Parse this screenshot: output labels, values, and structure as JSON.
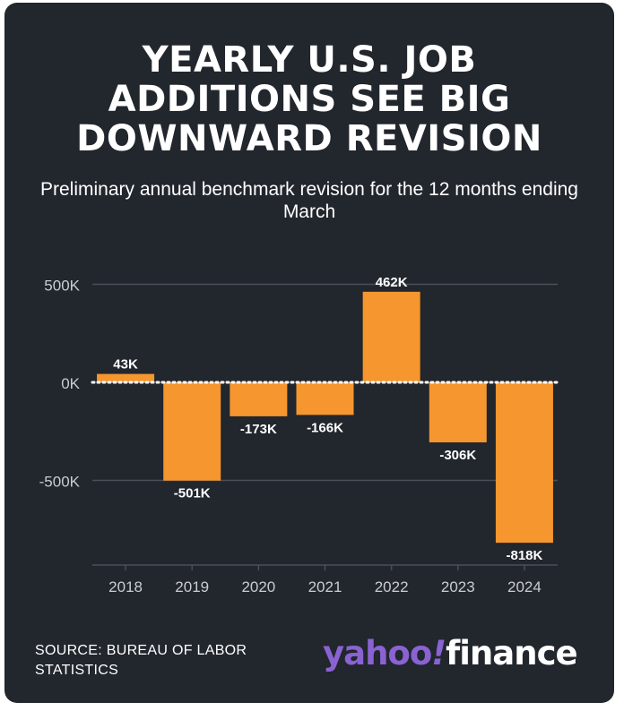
{
  "title_lines": [
    "YEARLY U.S. JOB",
    "ADDITIONS SEE BIG",
    "DOWNWARD REVISION"
  ],
  "subtitle": "Preliminary annual benchmark revision for the 12 months ending March",
  "source": "SOURCE: BUREAU OF LABOR STATISTICS",
  "logo": {
    "yahoo": "yahoo",
    "excl": "!",
    "finance": "finance"
  },
  "colors": {
    "background": "#22262d",
    "bar": "#f6962e",
    "grid": "#4a4f58",
    "text": "#ffffff",
    "axis_text": "#c9ccd1",
    "logo_purple": "#8a63d2"
  },
  "chart_data": {
    "type": "bar",
    "title": "YEARLY U.S. JOB ADDITIONS SEE BIG DOWNWARD REVISION",
    "subtitle": "Preliminary annual benchmark revision for the 12 months ending March",
    "categories": [
      "2018",
      "2019",
      "2020",
      "2021",
      "2022",
      "2023",
      "2024"
    ],
    "values": [
      43,
      -501,
      -173,
      -166,
      462,
      -306,
      -818
    ],
    "value_labels": [
      "43K",
      "-501K",
      "-173K",
      "-166K",
      "462K",
      "-306K",
      "-818K"
    ],
    "unit": "thousands",
    "y_ticks": [
      500,
      0,
      -500
    ],
    "y_tick_labels": [
      "500K",
      "0K",
      "-500K"
    ],
    "ylim": [
      -940,
      560
    ],
    "xlabel": "",
    "ylabel": "",
    "zero_line": "dotted white",
    "grid": true
  }
}
